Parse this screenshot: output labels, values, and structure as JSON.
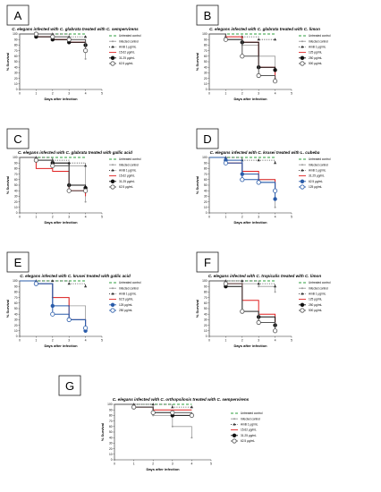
{
  "figure": {
    "panels": [
      {
        "letter": "A",
        "title": "C. elegans infected with C. glabrata treated with C. sempervirens",
        "legend": [
          "Untreated control",
          "Infected control",
          "AmB 1 μg/mL",
          "15.62 μg/mL",
          "31.25 μg/mL",
          "62.5 μg/mL"
        ]
      },
      {
        "letter": "B",
        "title": "C. elegans infected with C. glabrata treated with C. limon",
        "legend": [
          "Untreated control",
          "Infected control",
          "AmB 1 μg/mL",
          "125 μg/mL",
          "250 μg/mL",
          "500 μg/mL"
        ]
      },
      {
        "letter": "C",
        "title": "C. elegans infected with C. glabrata treated with gallic acid",
        "legend": [
          "Untreated control",
          "Infected control",
          "AmB 1 μg/mL",
          "15.62 μg/mL",
          "31.25 μg/mL",
          "62.5 μg/mL"
        ]
      },
      {
        "letter": "D",
        "title": "C. elegans infected with C. krusei treated with L. cubeba",
        "legend": [
          "Untreated control",
          "Infected control",
          "AmB 1 μg/mL",
          "31.25 μg/mL",
          "62.5 μg/mL",
          "125 μg/mL"
        ]
      },
      {
        "letter": "E",
        "title": "C. elegans infected with C. krusei treated with gallic acid",
        "legend": [
          "Untreated control",
          "Infected control",
          "AmB 1 μg/mL",
          "62.5 μg/mL",
          "125 μg/mL",
          "250 μg/mL"
        ]
      },
      {
        "letter": "F",
        "title": "C. elegans infected with C. tropicalis treated with C. limon",
        "legend": [
          "Untreated control",
          "Infected control",
          "AmB 1 μg/mL",
          "125 μg/mL",
          "250 μg/mL",
          "500 μg/mL"
        ]
      },
      {
        "letter": "G",
        "title": "C. elegans infected with C. orthopsilosis treated with C. sempervirens",
        "legend": [
          "Untreated control",
          "Infected control",
          "AmB 1 μg/mL",
          "15.62 μg/mL",
          "31.25 μg/mL",
          "62.5 μg/mL"
        ]
      }
    ],
    "colors": {
      "untreated": "#2e9e3e",
      "infected": "#999999",
      "amb": "#333333",
      "low": "#e02020",
      "mid": "#111111",
      "high": "#555555",
      "blue": "#2a5caa"
    }
  },
  "chart_data": [
    {
      "type": "line",
      "letter": "A",
      "title": "C. elegans infected with C. glabrata treated with C. sempervirens",
      "xlabel": "Days after infection",
      "ylabel": "% Survival",
      "xlim": [
        0,
        5
      ],
      "ylim": [
        0,
        100
      ],
      "xticks": [
        0,
        1,
        2,
        3,
        4,
        5
      ],
      "yticks": [
        0,
        10,
        20,
        30,
        40,
        50,
        60,
        70,
        80,
        90,
        100
      ],
      "x": [
        0,
        1,
        2,
        3,
        4
      ],
      "series": [
        {
          "name": "Untreated control",
          "values": [
            100,
            100,
            100,
            100,
            100
          ]
        },
        {
          "name": "Infected control",
          "values": [
            100,
            95,
            90,
            85,
            55
          ]
        },
        {
          "name": "AmB 1 μg/mL",
          "values": [
            100,
            100,
            100,
            95,
            95
          ]
        },
        {
          "name": "15.62 μg/mL",
          "values": [
            100,
            95,
            90,
            85,
            75
          ]
        },
        {
          "name": "31.25 μg/mL",
          "values": [
            100,
            95,
            90,
            85,
            80
          ]
        },
        {
          "name": "62.5 μg/mL",
          "values": [
            100,
            100,
            95,
            90,
            70
          ]
        }
      ],
      "legend": "right"
    },
    {
      "type": "line",
      "letter": "B",
      "title": "C. elegans infected with C. glabrata treated with C. limon",
      "xlabel": "Days after infection",
      "ylabel": "% Survival",
      "xlim": [
        0,
        5
      ],
      "ylim": [
        0,
        100
      ],
      "xticks": [
        0,
        1,
        2,
        3,
        4,
        5
      ],
      "yticks": [
        0,
        10,
        20,
        30,
        40,
        50,
        60,
        70,
        80,
        90,
        100
      ],
      "x": [
        0,
        1,
        2,
        3,
        4
      ],
      "series": [
        {
          "name": "Untreated control",
          "values": [
            100,
            100,
            100,
            100,
            100
          ]
        },
        {
          "name": "Infected control",
          "values": [
            100,
            90,
            80,
            60,
            20
          ]
        },
        {
          "name": "AmB 1 μg/mL",
          "values": [
            100,
            95,
            95,
            90,
            90
          ]
        },
        {
          "name": "125 μg/mL",
          "values": [
            100,
            95,
            85,
            40,
            20
          ]
        },
        {
          "name": "250 μg/mL",
          "values": [
            100,
            90,
            85,
            40,
            35
          ]
        },
        {
          "name": "500 μg/mL",
          "values": [
            100,
            90,
            60,
            25,
            15
          ]
        }
      ],
      "legend": "right"
    },
    {
      "type": "line",
      "letter": "C",
      "title": "C. elegans infected with C. glabrata treated with gallic acid",
      "xlabel": "Days after infection",
      "ylabel": "% Survival",
      "xlim": [
        0,
        5
      ],
      "ylim": [
        0,
        100
      ],
      "xticks": [
        0,
        1,
        2,
        3,
        4,
        5
      ],
      "yticks": [
        0,
        10,
        20,
        30,
        40,
        50,
        60,
        70,
        80,
        90,
        100
      ],
      "x": [
        0,
        1,
        2,
        3,
        4
      ],
      "series": [
        {
          "name": "Untreated control",
          "values": [
            100,
            100,
            100,
            100,
            100
          ]
        },
        {
          "name": "Infected control",
          "values": [
            100,
            95,
            90,
            85,
            20
          ]
        },
        {
          "name": "AmB 1 μg/mL",
          "values": [
            100,
            100,
            95,
            90,
            85
          ]
        },
        {
          "name": "15.62 μg/mL",
          "values": [
            100,
            80,
            75,
            40,
            30
          ]
        },
        {
          "name": "31.25 μg/mL",
          "values": [
            100,
            95,
            90,
            50,
            45
          ]
        },
        {
          "name": "62.5 μg/mL",
          "values": [
            100,
            95,
            85,
            40,
            40
          ]
        }
      ],
      "legend": "right"
    },
    {
      "type": "line",
      "letter": "D",
      "title": "C. elegans infected with C. krusei treated with L. cubeba",
      "xlabel": "Days after infection",
      "ylabel": "% Survival",
      "xlim": [
        0,
        5
      ],
      "ylim": [
        0,
        100
      ],
      "xticks": [
        0,
        1,
        2,
        3,
        4,
        5
      ],
      "yticks": [
        0,
        10,
        20,
        30,
        40,
        50,
        60,
        70,
        80,
        90,
        100
      ],
      "x": [
        0,
        1,
        2,
        3,
        4
      ],
      "series": [
        {
          "name": "Untreated control",
          "values": [
            100,
            100,
            100,
            100,
            100
          ]
        },
        {
          "name": "Infected control",
          "values": [
            100,
            90,
            70,
            60,
            10
          ]
        },
        {
          "name": "AmB 1 μg/mL",
          "values": [
            100,
            100,
            95,
            95,
            90
          ]
        },
        {
          "name": "31.25 μg/mL",
          "values": [
            100,
            90,
            75,
            60,
            40
          ]
        },
        {
          "name": "62.5 μg/mL",
          "values": [
            100,
            95,
            70,
            55,
            25
          ]
        },
        {
          "name": "125 μg/mL",
          "values": [
            100,
            90,
            60,
            55,
            40
          ]
        }
      ],
      "legend": "right"
    },
    {
      "type": "line",
      "letter": "E",
      "title": "C. elegans infected with C. krusei treated with gallic acid",
      "xlabel": "Days after infection",
      "ylabel": "% Survival",
      "xlim": [
        0,
        5
      ],
      "ylim": [
        0,
        100
      ],
      "xticks": [
        0,
        1,
        2,
        3,
        4,
        5
      ],
      "yticks": [
        0,
        10,
        20,
        30,
        40,
        50,
        60,
        70,
        80,
        90,
        100
      ],
      "x": [
        0,
        1,
        2,
        3,
        4
      ],
      "series": [
        {
          "name": "Untreated control",
          "values": [
            100,
            100,
            100,
            100,
            100
          ]
        },
        {
          "name": "Infected control",
          "values": [
            100,
            95,
            70,
            55,
            10
          ]
        },
        {
          "name": "AmB 1 μg/mL",
          "values": [
            100,
            100,
            100,
            95,
            90
          ]
        },
        {
          "name": "62.5 μg/mL",
          "values": [
            100,
            95,
            70,
            30,
            10
          ]
        },
        {
          "name": "125 μg/mL",
          "values": [
            100,
            95,
            55,
            30,
            10
          ]
        },
        {
          "name": "250 μg/mL",
          "values": [
            100,
            95,
            40,
            30,
            15
          ]
        }
      ],
      "legend": "right"
    },
    {
      "type": "line",
      "letter": "F",
      "title": "C. elegans infected with C. tropicalis treated with C. limon",
      "xlabel": "Days after infection",
      "ylabel": "% Survival",
      "xlim": [
        0,
        5
      ],
      "ylim": [
        0,
        100
      ],
      "xticks": [
        0,
        1,
        2,
        3,
        4,
        5
      ],
      "yticks": [
        0,
        10,
        20,
        30,
        40,
        50,
        60,
        70,
        80,
        90,
        100
      ],
      "x": [
        0,
        1,
        2,
        3,
        4
      ],
      "series": [
        {
          "name": "Untreated control",
          "values": [
            100,
            100,
            100,
            100,
            100
          ]
        },
        {
          "name": "Infected control",
          "values": [
            100,
            100,
            95,
            90,
            80
          ]
        },
        {
          "name": "AmB 1 μg/mL",
          "values": [
            100,
            100,
            100,
            95,
            90
          ]
        },
        {
          "name": "125 μg/mL",
          "values": [
            100,
            95,
            65,
            40,
            20
          ]
        },
        {
          "name": "250 μg/mL",
          "values": [
            100,
            90,
            45,
            35,
            20
          ]
        },
        {
          "name": "500 μg/mL",
          "values": [
            100,
            95,
            45,
            25,
            10
          ]
        }
      ],
      "legend": "right"
    },
    {
      "type": "line",
      "letter": "G",
      "title": "C. elegans infected with C. orthopsilosis treated with C. sempervirens",
      "xlabel": "Days after infection",
      "ylabel": "% Survival",
      "xlim": [
        0,
        5
      ],
      "ylim": [
        0,
        100
      ],
      "xticks": [
        0,
        1,
        2,
        3,
        4,
        5
      ],
      "yticks": [
        0,
        10,
        20,
        30,
        40,
        50,
        60,
        70,
        80,
        90,
        100
      ],
      "x": [
        0,
        1,
        2,
        3,
        4
      ],
      "series": [
        {
          "name": "Untreated control",
          "values": [
            100,
            100,
            100,
            100,
            100
          ]
        },
        {
          "name": "Infected control",
          "values": [
            100,
            100,
            80,
            60,
            40
          ]
        },
        {
          "name": "AmB 1 μg/mL",
          "values": [
            100,
            100,
            100,
            95,
            95
          ]
        },
        {
          "name": "15.62 μg/mL",
          "values": [
            100,
            95,
            90,
            90,
            90
          ]
        },
        {
          "name": "31.25 μg/mL",
          "values": [
            100,
            95,
            85,
            80,
            80
          ]
        },
        {
          "name": "62.5 μg/mL",
          "values": [
            100,
            95,
            85,
            85,
            80
          ]
        }
      ],
      "legend": "right"
    }
  ]
}
